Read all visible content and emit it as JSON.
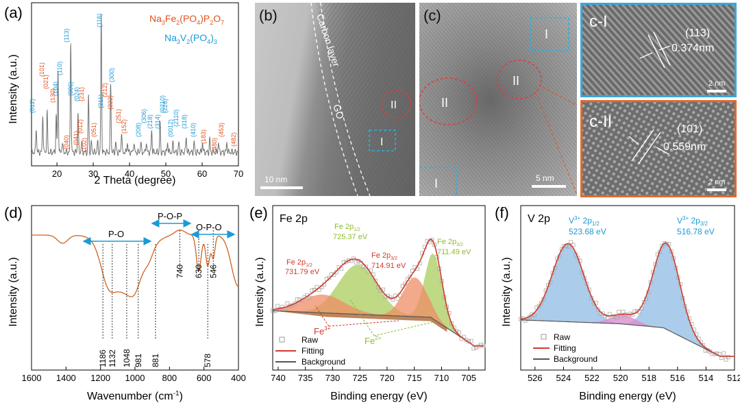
{
  "colors": {
    "orange": "#e0531c",
    "blue": "#1a9ad6",
    "green": "#8dbb2e",
    "red": "#d03a2a",
    "navy": "#1e3a66"
  },
  "panel_a": {
    "letter": "(a)",
    "xlabel": "2 Theta (degree)",
    "ylabel": "Intensity (a.u.)",
    "xticks": [
      "20",
      "30",
      "40",
      "50",
      "60",
      "70"
    ],
    "legend": {
      "nfpp_1": "Na",
      "nfpp_2": "3",
      "nfpp_3": "Fe",
      "nfpp_4": "2",
      "nfpp_5": "(PO",
      "nfpp_6": "4",
      "nfpp_7": ")P",
      "nfpp_8": "2",
      "nfpp_9": "O",
      "nfpp_10": "7",
      "nvp_1": "Na",
      "nvp_2": "3",
      "nvp_3": "V",
      "nvp_4": "2",
      "nvp_5": "(PO",
      "nvp_6": "4",
      "nvp_7": ")",
      "nvp_8": "3"
    },
    "peaks_orange": [
      "(101)",
      "(021)",
      "(130)",
      "(040)",
      "(041)",
      "(012)",
      "(102)",
      "(231)",
      "(051)",
      "(212)",
      "(222)",
      "(251)",
      "(152)",
      "(183)",
      "(480)",
      "(453)",
      "(482)"
    ],
    "peaks_blue": [
      "(012)",
      "(104)",
      "(110)",
      "(113)",
      "(006)",
      "(024)",
      "(116)",
      "(211)",
      "(300)",
      "(208)",
      "(306)",
      "(218)",
      "(314)",
      "(0210)",
      "(226)",
      "(0012)",
      "(2110)",
      "(318)",
      "(410)"
    ]
  },
  "panel_b": {
    "letter": "(b)",
    "carbon": "Carbon layer",
    "go": "GO",
    "region1": "I",
    "region2": "II",
    "scale": "10 nm"
  },
  "panel_c": {
    "letter": "(c)",
    "region1": "I",
    "region2": "II",
    "region2b": "II",
    "region1b": "I",
    "scale": "5 nm"
  },
  "panel_cI": {
    "title": "c-I",
    "plane": "(113)",
    "spacing": "0.374nm",
    "scale": "2 nm"
  },
  "panel_cII": {
    "title": "c-II",
    "plane": "(101)",
    "spacing": "0.559nm",
    "scale": "2 nm"
  },
  "panel_d": {
    "letter": "(d)",
    "xlabel": "Wavenumber (cm",
    "xlabel_sup": "-1",
    "xlabel_end": ")",
    "ylabel": "Intensity (a.u.)",
    "xticks": [
      "1600",
      "1400",
      "1200",
      "1000",
      "800",
      "600",
      "400"
    ],
    "groups": [
      "P-O",
      "P-O-P",
      "O-P-O"
    ],
    "bands": [
      "1186",
      "1132",
      "1048",
      "981",
      "881",
      "740",
      "630",
      "578",
      "546"
    ]
  },
  "panel_e": {
    "letter": "(e)",
    "title": "Fe 2p",
    "xlabel": "Binding energy (eV)",
    "ylabel": "Intensity (a.u.)",
    "xticks": [
      "740",
      "735",
      "730",
      "725",
      "720",
      "715",
      "710",
      "705"
    ],
    "labels": {
      "fe2p12_green": "Fe 2p",
      "fe2p12_green_sub": "1/2",
      "fe2p12_green_val": "725.37 eV",
      "fe2p32_red": "Fe 2p",
      "fe2p32_red_sub": "3/2",
      "fe2p32_red_val": "714.91 eV",
      "fe2p12_red": "Fe 2p",
      "fe2p12_red_sub": "1/2",
      "fe2p12_red_val": "731.79 eV",
      "fe2p32_green": "Fe 2p",
      "fe2p32_green_sub": "3/2",
      "fe2p32_green_val": "711.49 eV",
      "fe3": "Fe",
      "fe3_sup": "3+",
      "fe2": "Fe",
      "fe2_sup": "2+"
    },
    "legend": [
      "Raw",
      "Fitting",
      "Background"
    ]
  },
  "panel_f": {
    "letter": "(f)",
    "title": "V 2p",
    "xlabel": "Binding energy (eV)",
    "ylabel": "Intensity (a.u.)",
    "xticks": [
      "526",
      "524",
      "522",
      "520",
      "518",
      "516",
      "514",
      "512"
    ],
    "labels": {
      "v1": "V",
      "v1_sup": "3+",
      "v1_mid": " 2p",
      "v1_sub": "1/2",
      "v1_val": "523.68 eV",
      "v2": "V",
      "v2_sup": "3+",
      "v2_mid": " 2p",
      "v2_sub": "3/2",
      "v2_val": "516.78 eV"
    },
    "legend": [
      "Raw",
      "Fitting",
      "Background"
    ]
  },
  "chart_data": [
    {
      "type": "line",
      "panel": "a",
      "x_range": [
        13,
        70
      ],
      "xlabel": "2 Theta (degree)",
      "ylabel": "Intensity (a.u.)",
      "x": [
        14.3,
        16.1,
        17.3,
        19.8,
        20.3,
        23.8,
        25.8,
        28.7,
        32.2,
        34.8,
        37.8,
        46.1,
        48.4,
        55.6,
        62.1
      ],
      "y": [
        0.18,
        0.28,
        0.3,
        0.27,
        0.6,
        0.82,
        0.3,
        0.42,
        1.0,
        0.5,
        0.15,
        0.16,
        0.22,
        0.12,
        0.1
      ]
    },
    {
      "type": "line",
      "panel": "d",
      "x_range": [
        1600,
        400
      ],
      "xlabel": "Wavenumber (cm-1)",
      "ylabel": "Intensity (a.u.)",
      "x": [
        1600,
        1450,
        1400,
        1300,
        1186,
        1132,
        1048,
        981,
        881,
        740,
        630,
        578,
        546,
        500,
        400
      ],
      "y": [
        0.95,
        0.92,
        0.86,
        0.82,
        0.45,
        0.28,
        0.02,
        0.4,
        0.9,
        0.97,
        0.62,
        0.6,
        0.78,
        0.85,
        0.55
      ]
    },
    {
      "type": "line",
      "panel": "e",
      "x_range": [
        741,
        702
      ],
      "xlabel": "Binding energy (eV)",
      "ylabel": "Intensity (a.u.)",
      "x": [
        741,
        735,
        731.79,
        728,
        725.37,
        720,
        714.91,
        711.49,
        708,
        705,
        702
      ],
      "y": [
        0.28,
        0.34,
        0.52,
        0.6,
        0.68,
        0.42,
        0.58,
        0.95,
        0.2,
        0.12,
        0.11
      ]
    },
    {
      "type": "line",
      "panel": "f",
      "x_range": [
        527,
        512
      ],
      "xlabel": "Binding energy (eV)",
      "ylabel": "Intensity (a.u.)",
      "x": [
        527,
        525,
        523.68,
        522,
        520,
        518,
        516.78,
        515,
        513,
        512
      ],
      "y": [
        0.3,
        0.7,
        0.88,
        0.45,
        0.34,
        0.6,
        0.9,
        0.35,
        0.08,
        0.06
      ]
    }
  ]
}
